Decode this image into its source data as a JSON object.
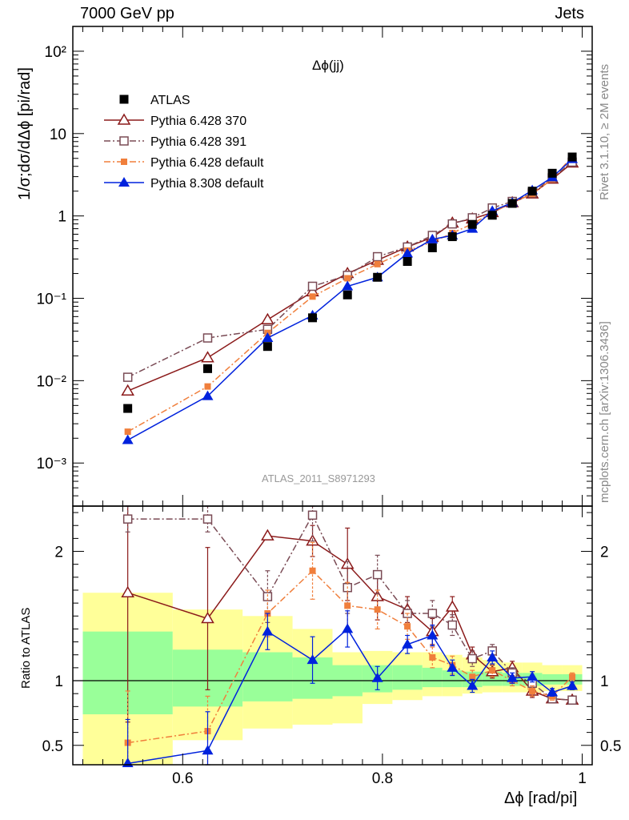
{
  "header": {
    "left": "7000 GeV pp",
    "right": "Jets"
  },
  "side_text": {
    "rivet": "Rivet 3.1.10, ≥ 2M events",
    "mcplots": "mcplots.cern.ch [arXiv:1306.3436]"
  },
  "chart_data": [
    {
      "type": "scatter",
      "panel": "main",
      "title": "Δϕ(jj)",
      "xlabel": "",
      "ylabel": "1/σ;dσ/dΔϕ [pi/rad]",
      "yscale": "log",
      "xlim": [
        0.49,
        1.01
      ],
      "ylim": [
        0.0003,
        200
      ],
      "analysis_label": "ATLAS_2011_S8971293",
      "ytick_labels": [
        "10^-3",
        "10^-2",
        "10^-1",
        "1",
        "10",
        "10^2"
      ],
      "legend_position": "top-left",
      "x": [
        0.545,
        0.625,
        0.685,
        0.73,
        0.765,
        0.795,
        0.825,
        0.85,
        0.87,
        0.89,
        0.91,
        0.93,
        0.95,
        0.97,
        0.99
      ],
      "series": [
        {
          "name": "ATLAS",
          "color": "#000000",
          "marker": "filled-square",
          "line": "none",
          "values": [
            0.0046,
            0.014,
            0.026,
            0.058,
            0.11,
            0.18,
            0.28,
            0.41,
            0.56,
            0.79,
            1.02,
            1.42,
            2.0,
            3.3,
            5.2
          ]
        },
        {
          "name": "Pythia 6.428 370",
          "color": "#8b1a1a",
          "marker": "open-triangle",
          "line": "solid",
          "values": [
            0.0075,
            0.019,
            0.055,
            0.12,
            0.2,
            0.29,
            0.42,
            0.55,
            0.82,
            0.92,
            1.1,
            1.45,
            1.85,
            2.8,
            4.4
          ]
        },
        {
          "name": "Pythia 6.428 391",
          "color": "#7a4b55",
          "marker": "open-square",
          "line": "dash-dot",
          "values": [
            0.011,
            0.033,
            0.042,
            0.14,
            0.19,
            0.32,
            0.42,
            0.58,
            0.8,
            0.95,
            1.25,
            1.5,
            1.9,
            2.9,
            4.5
          ]
        },
        {
          "name": "Pythia 6.428 default",
          "color": "#f07f3c",
          "marker": "filled-square-small",
          "line": "dash-dot",
          "values": [
            0.0024,
            0.0085,
            0.038,
            0.105,
            0.175,
            0.26,
            0.38,
            0.48,
            0.62,
            0.8,
            1.1,
            1.45,
            1.85,
            2.8,
            5.3
          ]
        },
        {
          "name": "Pythia 8.308 default",
          "color": "#0022dd",
          "marker": "filled-triangle",
          "line": "solid",
          "values": [
            0.0019,
            0.0065,
            0.033,
            0.062,
            0.14,
            0.18,
            0.35,
            0.52,
            0.58,
            0.7,
            1.15,
            1.45,
            2.05,
            2.95,
            4.9
          ]
        }
      ]
    },
    {
      "type": "scatter",
      "panel": "ratio",
      "xlabel": "Δϕ [rad/pi]",
      "ylabel": "Ratio to ATLAS",
      "xlim": [
        0.49,
        1.01
      ],
      "ylim": [
        0.35,
        2.35
      ],
      "xtick_labels": [
        "0.6",
        "0.8",
        "1"
      ],
      "ytick_labels": [
        "0.5",
        "1",
        "2"
      ],
      "x": [
        0.545,
        0.625,
        0.685,
        0.73,
        0.765,
        0.795,
        0.825,
        0.85,
        0.87,
        0.89,
        0.91,
        0.93,
        0.95,
        0.97,
        0.99
      ],
      "band_yellow_color": "#ffff99",
      "band_green_color": "#99ff99",
      "bands": [
        {
          "x0": 0.5,
          "x1": 0.59,
          "y_lo": 0.35,
          "y_hi": 1.68,
          "g_lo": 0.74,
          "g_hi": 1.38
        },
        {
          "x0": 0.59,
          "x1": 0.66,
          "y_lo": 0.54,
          "y_hi": 1.55,
          "g_lo": 0.8,
          "g_hi": 1.24
        },
        {
          "x0": 0.66,
          "x1": 0.71,
          "y_lo": 0.63,
          "y_hi": 1.5,
          "g_lo": 0.84,
          "g_hi": 1.22
        },
        {
          "x0": 0.71,
          "x1": 0.75,
          "y_lo": 0.66,
          "y_hi": 1.4,
          "g_lo": 0.86,
          "g_hi": 1.18
        },
        {
          "x0": 0.75,
          "x1": 0.78,
          "y_lo": 0.67,
          "y_hi": 1.22,
          "g_lo": 0.88,
          "g_hi": 1.12
        },
        {
          "x0": 0.78,
          "x1": 0.81,
          "y_lo": 0.82,
          "y_hi": 1.23,
          "g_lo": 0.91,
          "g_hi": 1.12
        },
        {
          "x0": 0.81,
          "x1": 0.84,
          "y_lo": 0.85,
          "y_hi": 1.22,
          "g_lo": 0.93,
          "g_hi": 1.12
        },
        {
          "x0": 0.84,
          "x1": 0.86,
          "y_lo": 0.88,
          "y_hi": 1.22,
          "g_lo": 0.95,
          "g_hi": 1.1
        },
        {
          "x0": 0.86,
          "x1": 0.88,
          "y_lo": 0.88,
          "y_hi": 1.2,
          "g_lo": 0.95,
          "g_hi": 1.08
        },
        {
          "x0": 0.88,
          "x1": 0.9,
          "y_lo": 0.9,
          "y_hi": 1.18,
          "g_lo": 0.95,
          "g_hi": 1.07
        },
        {
          "x0": 0.9,
          "x1": 0.92,
          "y_lo": 0.91,
          "y_hi": 1.16,
          "g_lo": 0.96,
          "g_hi": 1.07
        },
        {
          "x0": 0.92,
          "x1": 0.94,
          "y_lo": 0.91,
          "y_hi": 1.14,
          "g_lo": 0.96,
          "g_hi": 1.06
        },
        {
          "x0": 0.94,
          "x1": 0.96,
          "y_lo": 0.91,
          "y_hi": 1.14,
          "g_lo": 0.96,
          "g_hi": 1.06
        },
        {
          "x0": 0.96,
          "x1": 0.98,
          "y_lo": 0.92,
          "y_hi": 1.12,
          "g_lo": 0.97,
          "g_hi": 1.05
        },
        {
          "x0": 0.98,
          "x1": 1.0,
          "y_lo": 0.92,
          "y_hi": 1.12,
          "g_lo": 0.97,
          "g_hi": 1.05
        }
      ],
      "series": [
        {
          "name": "Pythia 6.428 370",
          "color": "#8b1a1a",
          "values": [
            1.68,
            1.48,
            2.12,
            2.08,
            1.9,
            1.65,
            1.55,
            1.38,
            1.57,
            1.2,
            1.07,
            1.1,
            0.92,
            0.86,
            0.85
          ],
          "err_up": [
            1.0,
            0.55,
            0.0,
            0.12,
            0.28,
            0.18,
            0.1,
            0.1,
            0.08,
            0.06,
            0.05,
            0.05,
            0.05,
            0.03,
            0.03
          ],
          "err_dn": [
            1.0,
            0.55,
            0.0,
            0.12,
            0.28,
            0.18,
            0.1,
            0.1,
            0.08,
            0.06,
            0.05,
            0.05,
            0.05,
            0.03,
            0.03
          ]
        },
        {
          "name": "Pythia 6.428 391",
          "color": "#7a4b55",
          "values": [
            2.25,
            2.25,
            1.65,
            2.28,
            1.72,
            1.82,
            1.52,
            1.52,
            1.43,
            1.17,
            1.23,
            1.06,
            0.98,
            0.86,
            0.85
          ],
          "err_up": [
            0.1,
            0.1,
            0.2,
            0.2,
            0.2,
            0.15,
            0.1,
            0.1,
            0.08,
            0.06,
            0.05,
            0.04,
            0.04,
            0.03,
            0.03
          ],
          "err_dn": [
            0.1,
            0.1,
            0.2,
            0.2,
            0.2,
            0.15,
            0.1,
            0.1,
            0.08,
            0.06,
            0.05,
            0.04,
            0.04,
            0.03,
            0.03
          ]
        },
        {
          "name": "Pythia 6.428 default",
          "color": "#f07f3c",
          "values": [
            0.52,
            0.61,
            1.52,
            1.85,
            1.58,
            1.55,
            1.42,
            1.18,
            1.12,
            1.03,
            1.08,
            1.0,
            0.92,
            0.88,
            1.03
          ],
          "err_up": [
            0.4,
            0.27,
            0.18,
            0.22,
            0.18,
            0.15,
            0.1,
            0.08,
            0.07,
            0.05,
            0.05,
            0.04,
            0.04,
            0.03,
            0.03
          ],
          "err_dn": [
            0.4,
            0.27,
            0.18,
            0.22,
            0.18,
            0.15,
            0.1,
            0.08,
            0.07,
            0.05,
            0.05,
            0.04,
            0.04,
            0.03,
            0.03
          ]
        },
        {
          "name": "Pythia 8.308 default",
          "color": "#0022dd",
          "values": [
            0.36,
            0.46,
            1.38,
            1.16,
            1.4,
            1.02,
            1.28,
            1.35,
            1.1,
            0.96,
            1.18,
            1.02,
            1.03,
            0.91,
            0.96
          ],
          "err_up": [
            0.34,
            0.3,
            0.14,
            0.18,
            0.14,
            0.09,
            0.07,
            0.08,
            0.06,
            0.05,
            0.05,
            0.04,
            0.04,
            0.03,
            0.03
          ],
          "err_dn": [
            0.34,
            0.3,
            0.14,
            0.18,
            0.14,
            0.09,
            0.07,
            0.08,
            0.06,
            0.05,
            0.05,
            0.04,
            0.04,
            0.03,
            0.03
          ]
        }
      ]
    }
  ]
}
